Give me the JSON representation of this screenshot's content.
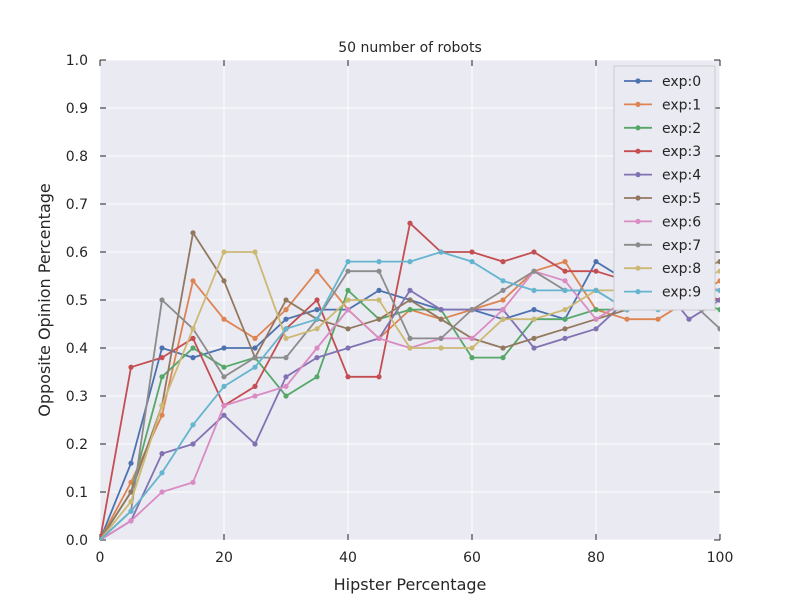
{
  "chart_data": {
    "type": "line",
    "title": "50 number of robots",
    "xlabel": "Hipster Percentage",
    "ylabel": "Opposite Opinion Percentage",
    "xlim": [
      0,
      100
    ],
    "ylim": [
      0,
      1.0
    ],
    "xticks": [
      0,
      20,
      40,
      60,
      80,
      100
    ],
    "xtick_labels": [
      "0",
      "20",
      "40",
      "60",
      "80",
      "100"
    ],
    "yticks": [
      0,
      0.1,
      0.2,
      0.3,
      0.4,
      0.5,
      0.6,
      0.7,
      0.8,
      0.9,
      1.0
    ],
    "ytick_labels": [
      "0.0",
      "0.1",
      "0.2",
      "0.3",
      "0.4",
      "0.5",
      "0.6",
      "0.7",
      "0.8",
      "0.9",
      "1.0"
    ],
    "grid": true,
    "legend_position": "top-right",
    "x": [
      0,
      5,
      10,
      15,
      20,
      25,
      30,
      35,
      40,
      45,
      50,
      55,
      60,
      65,
      70,
      75,
      80,
      85,
      90,
      95,
      100
    ],
    "series": [
      {
        "name": "exp:0",
        "color": "#4c72b0",
        "values": [
          0.0,
          0.16,
          0.4,
          0.38,
          0.4,
          0.4,
          0.46,
          0.48,
          0.48,
          0.52,
          0.5,
          0.48,
          0.48,
          0.46,
          0.48,
          0.46,
          0.58,
          0.54,
          0.52,
          0.5,
          0.5
        ]
      },
      {
        "name": "exp:1",
        "color": "#dd8452",
        "values": [
          0.0,
          0.12,
          0.26,
          0.54,
          0.46,
          0.42,
          0.48,
          0.56,
          0.48,
          0.42,
          0.48,
          0.46,
          0.48,
          0.5,
          0.56,
          0.58,
          0.48,
          0.46,
          0.46,
          0.5,
          0.54
        ]
      },
      {
        "name": "exp:2",
        "color": "#55a868",
        "values": [
          0.0,
          0.1,
          0.34,
          0.4,
          0.36,
          0.38,
          0.3,
          0.34,
          0.52,
          0.46,
          0.48,
          0.48,
          0.38,
          0.38,
          0.46,
          0.46,
          0.48,
          0.48,
          0.52,
          0.5,
          0.48
        ]
      },
      {
        "name": "exp:3",
        "color": "#c44e52",
        "values": [
          0.0,
          0.36,
          0.38,
          0.42,
          0.28,
          0.32,
          0.44,
          0.5,
          0.34,
          0.34,
          0.66,
          0.6,
          0.6,
          0.58,
          0.6,
          0.56,
          0.56,
          0.54,
          0.56,
          0.52,
          0.5
        ]
      },
      {
        "name": "exp:4",
        "color": "#8172b2",
        "values": [
          0.0,
          0.04,
          0.18,
          0.2,
          0.26,
          0.2,
          0.34,
          0.38,
          0.4,
          0.42,
          0.52,
          0.48,
          0.48,
          0.48,
          0.4,
          0.42,
          0.44,
          0.5,
          0.54,
          0.46,
          0.5
        ]
      },
      {
        "name": "exp:5",
        "color": "#937860",
        "values": [
          0.0,
          0.1,
          0.28,
          0.64,
          0.54,
          0.38,
          0.5,
          0.46,
          0.44,
          0.46,
          0.5,
          0.46,
          0.42,
          0.4,
          0.42,
          0.44,
          0.46,
          0.48,
          0.52,
          0.56,
          0.58
        ]
      },
      {
        "name": "exp:6",
        "color": "#da8bc3",
        "values": [
          0.0,
          0.04,
          0.1,
          0.12,
          0.28,
          0.3,
          0.32,
          0.4,
          0.48,
          0.42,
          0.4,
          0.42,
          0.42,
          0.48,
          0.56,
          0.54,
          0.46,
          0.5,
          0.52,
          0.54,
          0.52
        ]
      },
      {
        "name": "exp:7",
        "color": "#8c8c8c",
        "values": [
          0.0,
          0.06,
          0.5,
          0.44,
          0.34,
          0.38,
          0.38,
          0.46,
          0.56,
          0.56,
          0.42,
          0.42,
          0.48,
          0.52,
          0.56,
          0.52,
          0.52,
          0.48,
          0.5,
          0.5,
          0.44
        ]
      },
      {
        "name": "exp:8",
        "color": "#ccb974",
        "values": [
          0.0,
          0.08,
          0.28,
          0.44,
          0.6,
          0.6,
          0.42,
          0.44,
          0.5,
          0.5,
          0.4,
          0.4,
          0.4,
          0.46,
          0.46,
          0.48,
          0.52,
          0.52,
          0.56,
          0.54,
          0.56
        ]
      },
      {
        "name": "exp:9",
        "color": "#64b5cd",
        "values": [
          0.0,
          0.06,
          0.14,
          0.24,
          0.32,
          0.36,
          0.44,
          0.46,
          0.58,
          0.58,
          0.58,
          0.6,
          0.58,
          0.54,
          0.52,
          0.52,
          0.52,
          0.48,
          0.48,
          0.52,
          0.52
        ]
      }
    ]
  },
  "style": {
    "plot_background": "#eaeaf2",
    "grid_color": "#ffffff",
    "text_color": "#262626",
    "legend_border": "#cccccc"
  }
}
